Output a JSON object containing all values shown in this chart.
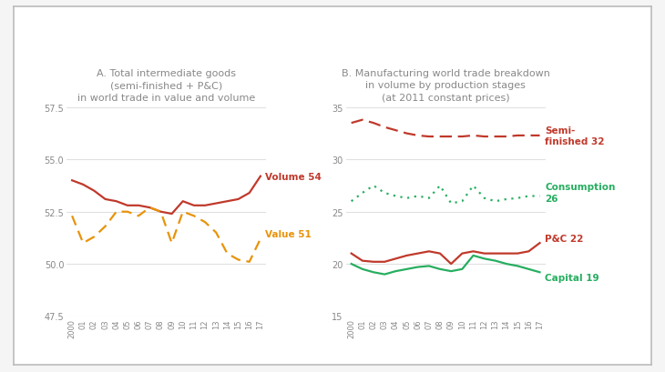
{
  "years": [
    2000,
    2001,
    2002,
    2003,
    2004,
    2005,
    2006,
    2007,
    2008,
    2009,
    2010,
    2011,
    2012,
    2013,
    2014,
    2015,
    2016,
    2017
  ],
  "panel_a": {
    "title": "A. Total intermediate goods\n(semi-finished + P&C)\nin world trade in value and volume",
    "volume": [
      54.0,
      53.8,
      53.5,
      53.1,
      53.0,
      52.8,
      52.8,
      52.7,
      52.5,
      52.4,
      53.0,
      52.8,
      52.8,
      52.9,
      53.0,
      53.1,
      53.4,
      54.2
    ],
    "value": [
      52.3,
      51.0,
      51.3,
      51.8,
      52.5,
      52.5,
      52.3,
      52.7,
      52.5,
      51.0,
      52.5,
      52.3,
      52.0,
      51.5,
      50.5,
      50.2,
      50.1,
      51.2
    ],
    "ylim": [
      47.5,
      57.5
    ],
    "yticks": [
      47.5,
      50.0,
      52.5,
      55.0,
      57.5
    ],
    "volume_label": "Volume 54",
    "value_label": "Value 51",
    "volume_color": "#c0392b",
    "value_color": "#e8930a"
  },
  "panel_b": {
    "title": "B. Manufacturing world trade breakdown\nin volume by production stages\n(at 2011 constant prices)",
    "semi_finished": [
      33.5,
      33.8,
      33.5,
      33.1,
      32.8,
      32.5,
      32.3,
      32.2,
      32.2,
      32.2,
      32.2,
      32.3,
      32.2,
      32.2,
      32.2,
      32.3,
      32.3,
      32.3
    ],
    "consumption": [
      26.0,
      26.8,
      27.5,
      26.8,
      26.5,
      26.3,
      26.5,
      26.3,
      27.5,
      25.8,
      26.0,
      27.5,
      26.3,
      26.0,
      26.2,
      26.3,
      26.5,
      26.5
    ],
    "pac": [
      21.0,
      20.3,
      20.2,
      20.2,
      20.5,
      20.8,
      21.0,
      21.2,
      21.0,
      20.0,
      21.0,
      21.2,
      21.0,
      21.0,
      21.0,
      21.0,
      21.2,
      22.0
    ],
    "capital": [
      20.0,
      19.5,
      19.2,
      19.0,
      19.3,
      19.5,
      19.7,
      19.8,
      19.5,
      19.3,
      19.5,
      20.8,
      20.5,
      20.3,
      20.0,
      19.8,
      19.5,
      19.2
    ],
    "ylim": [
      15,
      35
    ],
    "yticks": [
      15,
      20,
      25,
      30,
      35
    ],
    "semi_label": "Semi-\nfinished 32",
    "consumption_label": "Consumption\n26",
    "pac_label": "P&C 22",
    "capital_label": "Capital 19",
    "semi_color": "#c0392b",
    "consumption_color": "#27ae60",
    "pac_color": "#c0392b",
    "capital_color": "#27ae60"
  },
  "background_color": "#f5f5f5",
  "plot_bg": "#ffffff",
  "border_color": "#bbbbbb",
  "title_color": "#888888",
  "tick_color": "#888888",
  "grid_color": "#e0e0e0"
}
